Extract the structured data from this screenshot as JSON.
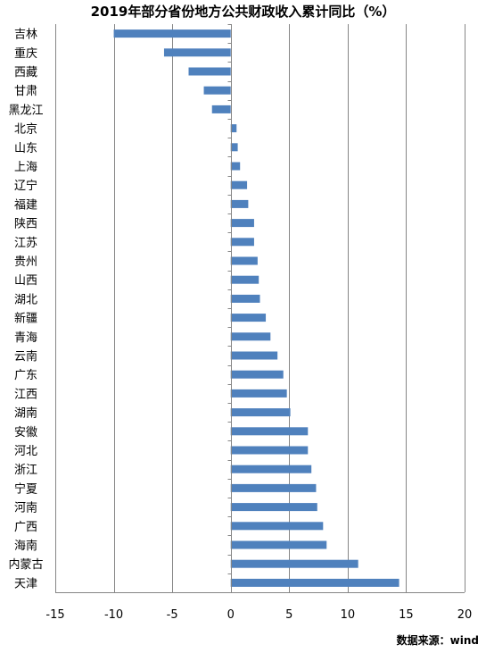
{
  "title": "2019年部分省份地方公共财政收入累计同比（%）",
  "source": "数据来源：wind",
  "chart_data": {
    "type": "bar",
    "orientation": "horizontal",
    "title": "2019年部分省份地方公共财政收入累计同比（%）",
    "xlim": [
      -15,
      20
    ],
    "xticks": [
      -15,
      -10,
      -5,
      0,
      5,
      10,
      15,
      20
    ],
    "tick_labels": [
      "-15",
      "-10",
      "-5",
      "0",
      "5",
      "10",
      "15",
      "20"
    ],
    "grid": "vertical",
    "bar_color": "#4f81bd",
    "categories": [
      "吉林",
      "重庆",
      "西藏",
      "甘肃",
      "黑龙江",
      "北京",
      "山东",
      "上海",
      "辽宁",
      "福建",
      "陕西",
      "江苏",
      "贵州",
      "山西",
      "湖北",
      "新疆",
      "青海",
      "云南",
      "广东",
      "江西",
      "湖南",
      "安徽",
      "河北",
      "浙江",
      "宁夏",
      "河南",
      "广西",
      "海南",
      "内蒙古",
      "天津"
    ],
    "values": [
      -10.0,
      -5.7,
      -3.6,
      -2.3,
      -1.6,
      0.5,
      0.6,
      0.8,
      1.4,
      1.5,
      2.0,
      2.0,
      2.3,
      2.4,
      2.5,
      3.0,
      3.4,
      4.0,
      4.5,
      4.8,
      5.1,
      6.6,
      6.6,
      6.9,
      7.3,
      7.4,
      7.9,
      8.2,
      10.9,
      14.4
    ]
  }
}
